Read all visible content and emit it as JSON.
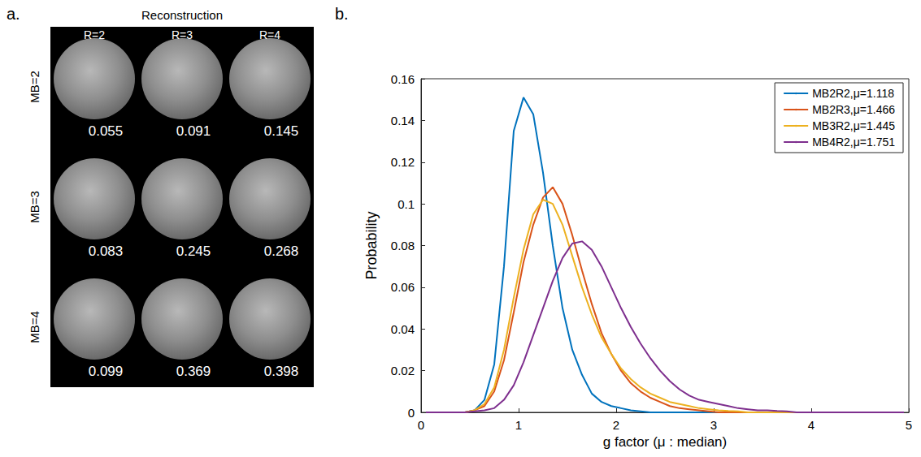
{
  "panel_a": {
    "letter": "a.",
    "title": "Reconstruction",
    "columns": [
      "R=2",
      "R=3",
      "R=4"
    ],
    "rows": [
      "MB=2",
      "MB=3",
      "MB=4"
    ],
    "values": [
      [
        0.055,
        0.091,
        0.145
      ],
      [
        0.083,
        0.245,
        0.268
      ],
      [
        0.099,
        0.369,
        0.398
      ]
    ]
  },
  "chart_data": {
    "type": "line",
    "letter": "b.",
    "x_label": "g factor (μ : median)",
    "y_label": "Probability",
    "x": [
      0.05,
      0.15,
      0.25,
      0.35,
      0.45,
      0.55,
      0.65,
      0.75,
      0.85,
      0.95,
      1.05,
      1.15,
      1.25,
      1.35,
      1.45,
      1.55,
      1.65,
      1.75,
      1.85,
      1.95,
      2.05,
      2.15,
      2.25,
      2.35,
      2.45,
      2.55,
      2.65,
      2.75,
      2.85,
      2.95,
      3.05,
      3.15,
      3.25,
      3.35,
      3.45,
      3.55,
      3.65,
      3.75,
      3.85,
      3.95,
      4.05,
      4.15,
      4.25,
      4.35,
      4.45,
      4.55,
      4.65,
      4.75,
      4.85,
      4.95
    ],
    "series": [
      {
        "name": "MB2R2,μ=1.118",
        "color": "#0072bd",
        "values": [
          0,
          0,
          0,
          0,
          0,
          0.001,
          0.006,
          0.023,
          0.07,
          0.135,
          0.151,
          0.143,
          0.115,
          0.08,
          0.05,
          0.03,
          0.018,
          0.009,
          0.005,
          0.003,
          0.002,
          0.001,
          0.0005,
          0,
          0,
          0,
          0,
          0,
          0,
          0,
          0,
          0,
          0,
          0,
          0,
          0,
          0,
          0,
          0,
          0,
          0,
          0,
          0,
          0,
          0,
          0,
          0,
          0,
          0,
          0
        ]
      },
      {
        "name": "MB2R3,μ=1.466",
        "color": "#d95319",
        "values": [
          0,
          0,
          0,
          0,
          0,
          0.001,
          0.003,
          0.01,
          0.025,
          0.048,
          0.072,
          0.09,
          0.103,
          0.108,
          0.1,
          0.085,
          0.068,
          0.052,
          0.038,
          0.028,
          0.02,
          0.014,
          0.01,
          0.007,
          0.005,
          0.003,
          0.002,
          0.0015,
          0.001,
          0.0005,
          0,
          0,
          0,
          0,
          0,
          0,
          0,
          0,
          0,
          0,
          0,
          0,
          0,
          0,
          0,
          0,
          0,
          0,
          0,
          0
        ]
      },
      {
        "name": "MB3R2,μ=1.445",
        "color": "#edb120",
        "values": [
          0,
          0,
          0,
          0,
          0,
          0.001,
          0.004,
          0.012,
          0.03,
          0.055,
          0.078,
          0.095,
          0.102,
          0.1,
          0.09,
          0.075,
          0.06,
          0.047,
          0.036,
          0.028,
          0.021,
          0.016,
          0.012,
          0.009,
          0.007,
          0.005,
          0.004,
          0.003,
          0.002,
          0.0015,
          0.001,
          0.0007,
          0.0005,
          0,
          0,
          0,
          0,
          0,
          0,
          0,
          0,
          0,
          0,
          0,
          0,
          0,
          0,
          0,
          0,
          0
        ]
      },
      {
        "name": "MB4R2,μ=1.751",
        "color": "#7e2f8e",
        "values": [
          0,
          0,
          0,
          0,
          0,
          0.0005,
          0.001,
          0.002,
          0.006,
          0.013,
          0.024,
          0.037,
          0.05,
          0.063,
          0.074,
          0.081,
          0.082,
          0.078,
          0.07,
          0.06,
          0.05,
          0.041,
          0.033,
          0.026,
          0.02,
          0.015,
          0.011,
          0.008,
          0.006,
          0.005,
          0.004,
          0.003,
          0.002,
          0.0015,
          0.001,
          0.001,
          0.0007,
          0.0005,
          0,
          0,
          0,
          0,
          0,
          0,
          0,
          0,
          0,
          0,
          0,
          0
        ]
      }
    ],
    "xlim": [
      0,
      5
    ],
    "xticks": [
      0,
      1,
      2,
      3,
      4,
      5
    ],
    "ylim": [
      0,
      0.16
    ],
    "yticks": [
      0,
      0.02,
      0.04,
      0.06,
      0.08,
      0.1,
      0.12,
      0.14,
      0.16
    ],
    "grid": false,
    "legend": "top-right"
  }
}
